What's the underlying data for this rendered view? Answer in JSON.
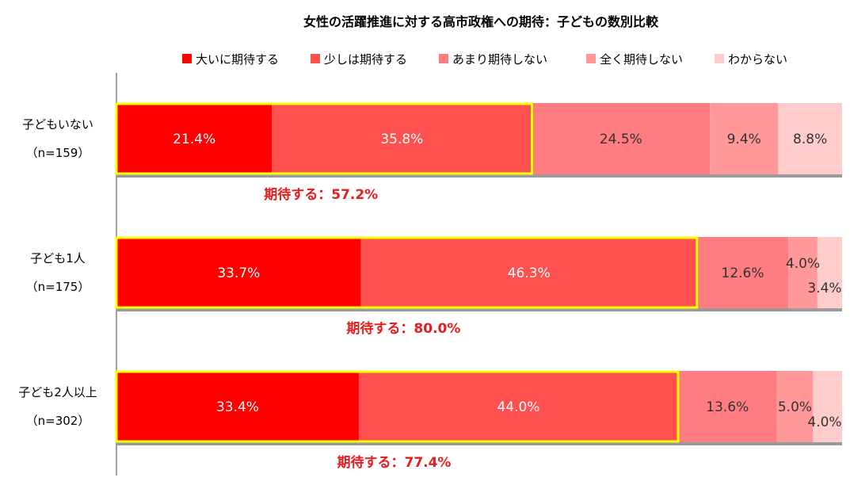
{
  "chart_data": {
    "type": "bar",
    "orientation": "horizontal",
    "stacked": "100%",
    "title": "女性の活躍推進に対する高市政権への期待：子どもの数別比較",
    "legend_position": "top",
    "grid": false,
    "categories": [
      {
        "label": "子どもいない",
        "n_label": "（n=159）"
      },
      {
        "label": "子ども1人",
        "n_label": "（n=175）"
      },
      {
        "label": "子ども2人以上",
        "n_label": "（n=302）"
      }
    ],
    "series": [
      {
        "name": "大いに期待する",
        "color": "#ff0000",
        "values": [
          21.4,
          33.7,
          33.4
        ],
        "labels": [
          "21.4%",
          "33.7%",
          "33.4%"
        ]
      },
      {
        "name": "少しは期待する",
        "color": "#ff5050",
        "values": [
          35.8,
          46.3,
          44.0
        ],
        "labels": [
          "35.8%",
          "46.3%",
          "44.0%"
        ]
      },
      {
        "name": "あまり期待しない",
        "color": "#ff7c80",
        "values": [
          24.5,
          12.6,
          13.6
        ],
        "labels": [
          "24.5%",
          "12.6%",
          "13.6%"
        ]
      },
      {
        "name": "全く期待しない",
        "color": "#ff9999",
        "values": [
          9.4,
          4.0,
          5.0
        ],
        "labels": [
          "9.4%",
          "4.0%",
          "5.0%"
        ]
      },
      {
        "name": "わからない",
        "color": "#ffcccc",
        "values": [
          8.8,
          3.4,
          4.0
        ],
        "labels": [
          "8.8%",
          "3.4%",
          "4.0%"
        ]
      }
    ],
    "highlight": {
      "border_color": "#ffff00",
      "series_count": 2,
      "totals": [
        "期待する：57.2%",
        "期待する：80.0%",
        "期待する：77.4%"
      ],
      "total_color": "#e41e1e"
    }
  }
}
